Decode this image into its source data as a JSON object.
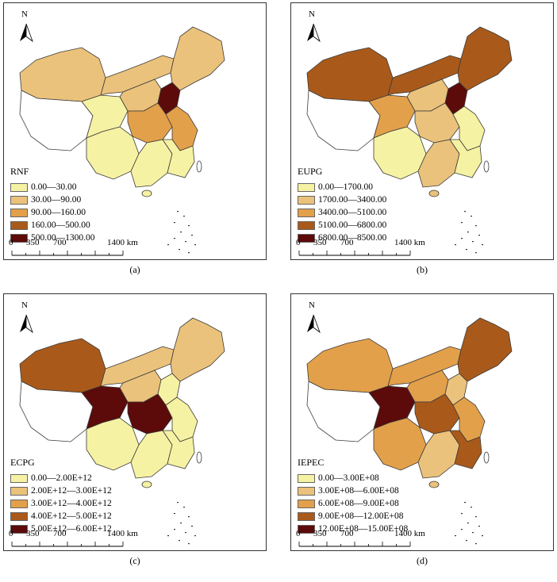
{
  "north_label": "N",
  "scale": {
    "ticks": [
      "0",
      "350",
      "700",
      "1400 km"
    ]
  },
  "palette": [
    "#f6f2a3",
    "#ebc27b",
    "#e3a04a",
    "#a95a1a",
    "#5c0a0a"
  ],
  "panels": [
    {
      "caption": "(a)",
      "legend_title": "RNF",
      "classes": [
        "0.00—30.00",
        "30.00—90.00",
        "90.00—160.00",
        "160.00—500.00",
        "500.00—1300.00"
      ],
      "region_levels": {
        "northwest": 1,
        "tibet": -1,
        "qinghai": 0,
        "north": 1,
        "northeast": 1,
        "mongolia": 1,
        "center": 2,
        "capital": 4,
        "east": 2,
        "southwest": 0,
        "south": 0,
        "southeast": 0
      }
    },
    {
      "caption": "(b)",
      "legend_title": "EUPG",
      "classes": [
        "0.00—1700.00",
        "1700.00—3400.00",
        "3400.00—5100.00",
        "5100.00—6800.00",
        "6800.00—8500.00"
      ],
      "region_levels": {
        "northwest": 3,
        "tibet": -1,
        "qinghai": 2,
        "north": 1,
        "northeast": 3,
        "mongolia": 3,
        "center": 1,
        "capital": 4,
        "east": 0,
        "southwest": 0,
        "south": 1,
        "southeast": 0
      }
    },
    {
      "caption": "(c)",
      "legend_title": "ECPG",
      "classes": [
        "0.00—2.00E+12",
        "2.00E+12—3.00E+12",
        "3.00E+12—4.00E+12",
        "4.00E+12—5.00E+12",
        "5.00E+12—6.00E+12"
      ],
      "region_levels": {
        "northwest": 3,
        "tibet": -1,
        "qinghai": 4,
        "north": 1,
        "northeast": 1,
        "mongolia": 1,
        "center": 4,
        "capital": 0,
        "east": 0,
        "southwest": 0,
        "south": 0,
        "southeast": 0
      }
    },
    {
      "caption": "(d)",
      "legend_title": "IEPEC",
      "classes": [
        "0.00—3.00E+08",
        "3.00E+08—6.00E+08",
        "6.00E+08—9.00E+08",
        "9.00E+08—12.00E+08",
        "12.00E+08—15.00E+08"
      ],
      "region_levels": {
        "northwest": 2,
        "tibet": -1,
        "qinghai": 4,
        "north": 2,
        "northeast": 3,
        "mongolia": 2,
        "center": 3,
        "capital": 1,
        "east": 2,
        "southwest": 2,
        "south": 1,
        "southeast": 3
      }
    }
  ]
}
